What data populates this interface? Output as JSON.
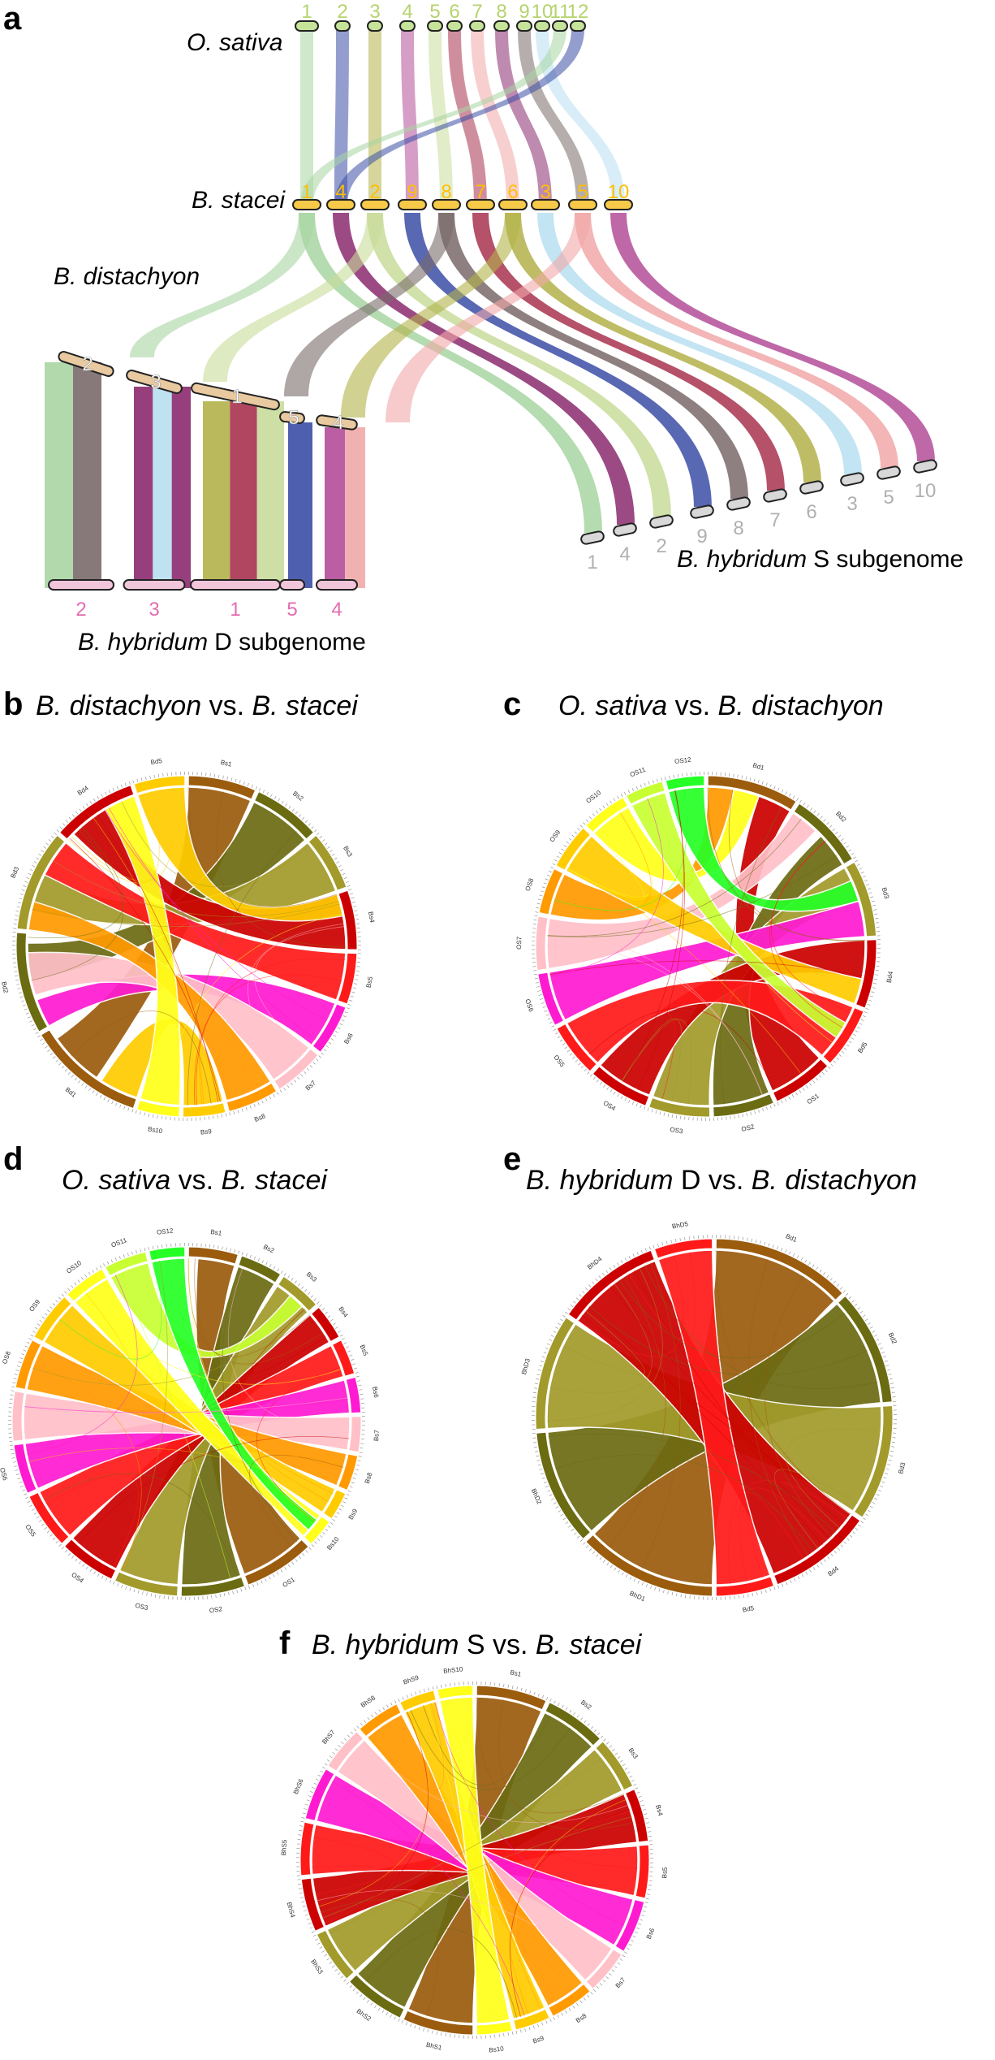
{
  "panel_a": {
    "label": "a",
    "osativa": {
      "name": "O. sativa",
      "chroms": [
        "1",
        "2",
        "3",
        "4",
        "5",
        "6",
        "7",
        "8",
        "9",
        "10",
        "11",
        "12"
      ]
    },
    "bstacei": {
      "name": "B. stacei",
      "chroms": [
        "1",
        "4",
        "2",
        "9",
        "8",
        "7",
        "6",
        "3",
        "5",
        "10"
      ]
    },
    "bdistachyon": {
      "name": "B. distachyon",
      "chroms": [
        "2",
        "3",
        "1",
        "5",
        "4"
      ]
    },
    "bhd": {
      "name_italic": "B. hybridum",
      "name_rest": "D subgenome",
      "chroms": [
        "2",
        "3",
        "1",
        "5",
        "4"
      ]
    },
    "bhs": {
      "name_italic": "B. hybridum",
      "name_rest": "S subgenome",
      "chroms": [
        "1",
        "4",
        "2",
        "9",
        "8",
        "7",
        "6",
        "3",
        "5",
        "10"
      ]
    }
  },
  "panels": [
    {
      "label": "b",
      "title": [
        {
          "t": "B. distachyon",
          "i": true
        },
        {
          "t": " vs. ",
          "i": false
        },
        {
          "t": "B. stacei",
          "i": true
        }
      ],
      "chroms": [
        "Bs1",
        "Bs2",
        "Bs3",
        "Bs4",
        "Bs5",
        "Bs6",
        "Bs7",
        "Bs8",
        "Bs9",
        "Bs10",
        "Bd1",
        "Bd2",
        "Bd3",
        "Bd4",
        "Bd5"
      ]
    },
    {
      "label": "c",
      "title": [
        {
          "t": "O. sativa",
          "i": true
        },
        {
          "t": " vs. ",
          "i": false
        },
        {
          "t": "B. distachyon",
          "i": true
        }
      ],
      "chroms": [
        "Bd1",
        "Bd2",
        "Bd3",
        "Bd4",
        "Bd5",
        "OS1",
        "OS2",
        "OS3",
        "OS4",
        "OS5",
        "OS6",
        "OS7",
        "OS8",
        "OS9",
        "OS10",
        "OS11",
        "OS12"
      ]
    },
    {
      "label": "d",
      "title": [
        {
          "t": "O. sativa",
          "i": true
        },
        {
          "t": " vs. ",
          "i": false
        },
        {
          "t": "B. stacei",
          "i": true
        }
      ],
      "chroms": [
        "Bs1",
        "Bs2",
        "Bs3",
        "Bs4",
        "Bs5",
        "Bs6",
        "Bs7",
        "Bs8",
        "Bs9",
        "Bs10",
        "OS1",
        "OS2",
        "OS3",
        "OS4",
        "OS5",
        "OS6",
        "OS7",
        "OS8",
        "OS9",
        "OS10",
        "OS11",
        "OS12"
      ]
    },
    {
      "label": "e",
      "title": [
        {
          "t": "B. hybridum",
          "i": true
        },
        {
          "t": " D vs. ",
          "i": false
        },
        {
          "t": "B. distachyon",
          "i": true
        }
      ],
      "chroms": [
        "Bd1",
        "Bd2",
        "Bd3",
        "Bd4",
        "Bd5",
        "BhD1",
        "BhD2",
        "BhD3",
        "BhD4",
        "BhD5"
      ]
    },
    {
      "label": "f",
      "title": [
        {
          "t": "B. hybridum",
          "i": true
        },
        {
          "t": " S vs. ",
          "i": false
        },
        {
          "t": "B. stacei",
          "i": true
        }
      ],
      "chroms": [
        "Bs1",
        "Bs2",
        "Bs3",
        "Bs4",
        "Bs5",
        "Bs6",
        "Bs7",
        "Bs8",
        "Bs9",
        "Bs10",
        "BhS1",
        "BhS2",
        "BhS3",
        "BhS4",
        "BhS5",
        "BhS6",
        "BhS7",
        "BhS8",
        "BhS9",
        "BhS10"
      ]
    }
  ],
  "colors": {
    "c1": "#9b5c0e",
    "c2": "#6b6b12",
    "c3": "#a29a2a",
    "c4": "#cc0000",
    "c5": "#ff1a1a",
    "c6": "#ff1ad1",
    "c7": "#ffc0c8",
    "c8": "#ff9a00",
    "c9": "#ffcc00",
    "c10": "#ffff1a",
    "c11": "#c8ff33",
    "c12": "#26ff26",
    "tick_green": "#b6d36e",
    "tick_yellow": "#ffbf00",
    "tick_pink": "#e36db0",
    "tick_gray": "#b0b0b0"
  }
}
